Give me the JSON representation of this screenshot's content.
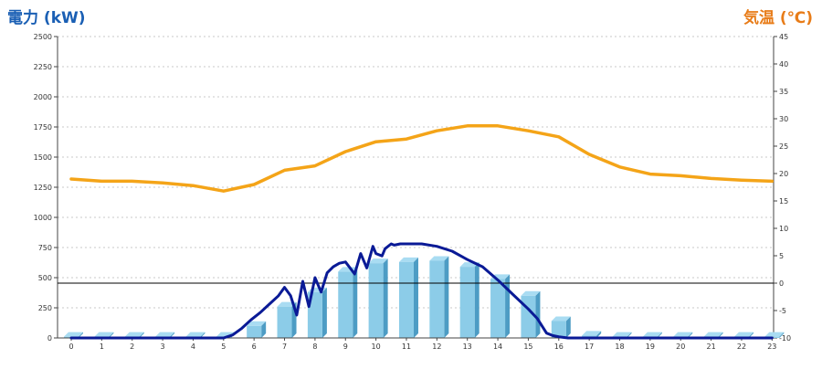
{
  "chart_data": {
    "type": "bar",
    "title": "",
    "categories": [
      "0",
      "1",
      "2",
      "3",
      "4",
      "5",
      "6",
      "7",
      "8",
      "9",
      "10",
      "11",
      "12",
      "13",
      "14",
      "15",
      "16",
      "17",
      "18",
      "19",
      "20",
      "21",
      "22",
      "23"
    ],
    "y_left": {
      "label": "電力 (kW)",
      "ticks": [
        "0",
        "250",
        "500",
        "750",
        "1000",
        "1250",
        "1500",
        "1750",
        "2000",
        "2250",
        "2500"
      ],
      "ylim": [
        0,
        2500
      ]
    },
    "y_right": {
      "label": "気温 (℃)",
      "ticks": [
        "-10",
        "-5",
        "0",
        "5",
        "10",
        "15",
        "20",
        "25",
        "30",
        "35",
        "40",
        "45"
      ],
      "ylim": [
        -10,
        45
      ]
    },
    "grid": true,
    "series": [
      {
        "kind": "bar",
        "axis": "left",
        "color": "#8ccce8",
        "values": [
          10,
          10,
          10,
          10,
          10,
          10,
          100,
          260,
          380,
          550,
          620,
          630,
          640,
          590,
          490,
          350,
          140,
          20,
          10,
          10,
          10,
          10,
          10,
          10
        ]
      },
      {
        "kind": "line",
        "axis": "left",
        "color": "#0a1a96",
        "x": [
          0,
          1,
          2,
          3,
          4,
          5,
          5.3,
          5.6,
          5.9,
          6.2,
          6.5,
          6.8,
          7,
          7.2,
          7.4,
          7.6,
          7.8,
          8,
          8.2,
          8.4,
          8.6,
          8.8,
          9,
          9.3,
          9.5,
          9.7,
          9.9,
          10,
          10.2,
          10.3,
          10.5,
          10.6,
          10.8,
          11,
          11.5,
          12,
          12.5,
          13,
          13.5,
          14,
          14.5,
          15,
          15.3,
          15.6,
          15.8,
          16,
          16.3,
          16.6,
          17,
          18,
          19,
          20,
          21,
          22,
          23
        ],
        "values": [
          0,
          0,
          0,
          0,
          0,
          0,
          25,
          80,
          150,
          210,
          280,
          350,
          420,
          350,
          190,
          470,
          260,
          500,
          380,
          540,
          590,
          620,
          630,
          530,
          700,
          580,
          760,
          700,
          680,
          740,
          780,
          770,
          780,
          780,
          780,
          760,
          720,
          650,
          590,
          480,
          360,
          240,
          160,
          40,
          20,
          10,
          0,
          0,
          0,
          0,
          0,
          0,
          0,
          0,
          0
        ]
      },
      {
        "kind": "line",
        "axis": "right",
        "color": "#f4a418",
        "x": [
          0,
          1,
          2,
          3,
          4,
          5,
          6,
          7,
          8,
          9,
          10,
          11,
          12,
          13,
          14,
          15,
          16,
          17,
          18,
          19,
          20,
          21,
          22,
          23
        ],
        "values": [
          19,
          18.6,
          18.6,
          18.3,
          17.8,
          16.8,
          18,
          20.6,
          21.4,
          24,
          25.8,
          26.3,
          27.8,
          28.7,
          28.7,
          27.8,
          26.7,
          23.5,
          21.2,
          19.9,
          19.6,
          19.1,
          18.8,
          18.6
        ]
      }
    ],
    "reference_line": {
      "axis": "right",
      "value": 0,
      "color": "#000000"
    }
  }
}
